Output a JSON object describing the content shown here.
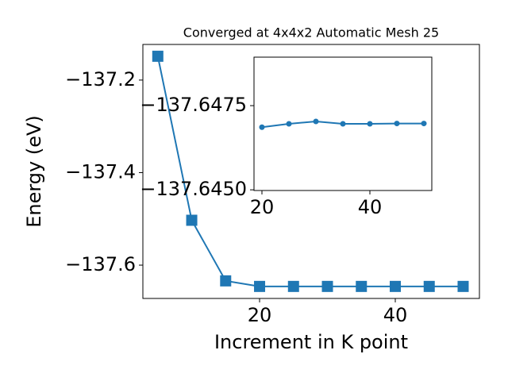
{
  "chart_data": [
    {
      "type": "line",
      "title": "Converged at 4x4x2 Automatic Mesh 25",
      "x_label": "Increment in K point",
      "y_label": "Energy (eV)",
      "marker": "square",
      "x": [
        5,
        10,
        15,
        20,
        25,
        30,
        35,
        40,
        45,
        50
      ],
      "series": [
        {
          "color": "#1f77b4",
          "values": [
            -137.1485,
            -137.503,
            -137.634,
            -137.646,
            -137.646,
            -137.646,
            -137.646,
            -137.646,
            -137.646,
            -137.646
          ]
        }
      ],
      "xlim": [
        2.8,
        52.4
      ],
      "xticks": [
        20,
        40
      ],
      "ylim": [
        -137.672,
        -137.123
      ],
      "yticks": [
        {
          "value": -137.6,
          "label": "−137.6"
        },
        {
          "value": -137.4,
          "label": "−137.4"
        },
        {
          "value": -137.2,
          "label": "−137.2"
        }
      ]
    },
    {
      "type": "line",
      "marker": "circle",
      "x": [
        20,
        25,
        30,
        35,
        40,
        45,
        50
      ],
      "series": [
        {
          "color": "#1f77b4",
          "values": [
            -137.64686,
            -137.64696,
            -137.64703,
            -137.64696,
            -137.64696,
            -137.64697,
            -137.64697
          ]
        }
      ],
      "xlim": [
        18.53,
        51.47
      ],
      "xticks": [
        20,
        40
      ],
      "ylim": [
        -137.64498,
        -137.64894
      ],
      "yticks": [
        {
          "value": -137.645,
          "label": "−137.6450"
        },
        {
          "value": -137.6475,
          "label": "−137.6475"
        }
      ]
    }
  ]
}
